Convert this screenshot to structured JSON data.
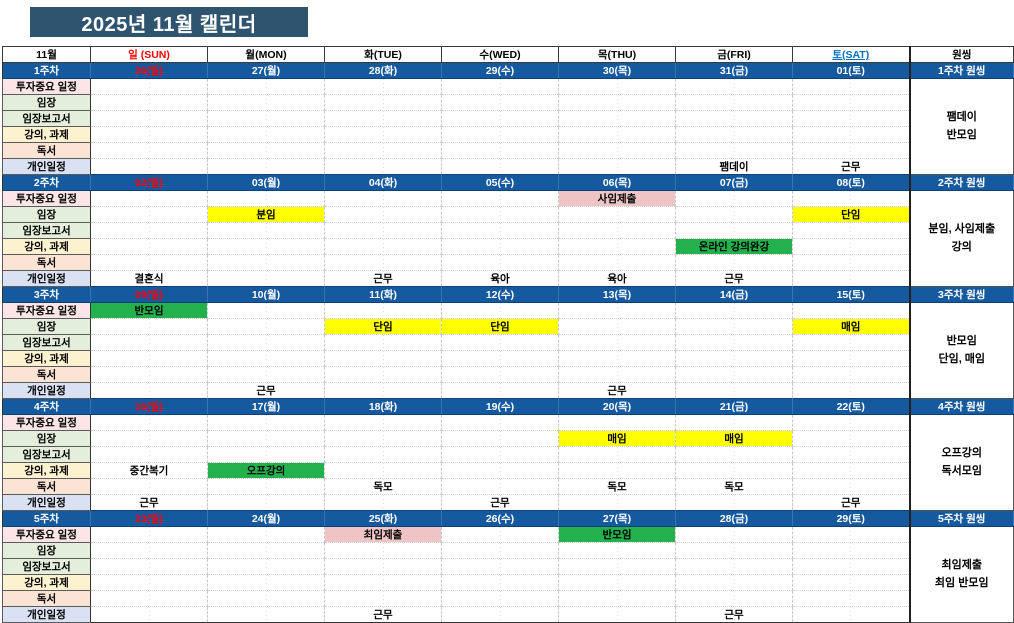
{
  "title": "2025년 11월 캘린더",
  "header": {
    "month": "11월",
    "days": [
      "일 (SUN)",
      "월(MON)",
      "화(TUE)",
      "수(WED)",
      "목(THU)",
      "금(FRI)",
      "토(SAT)"
    ],
    "onething": "원씽"
  },
  "row_labels": [
    "투자중요 일정",
    "임장",
    "임장보고서",
    "강의, 과제",
    "독서",
    "개인일정"
  ],
  "weeks": [
    {
      "label": "1주차",
      "dates": [
        "26(일)",
        "27(월)",
        "28(화)",
        "29(수)",
        "30(목)",
        "31(금)",
        "01(토)"
      ],
      "onething_header": "1주차 원씽",
      "onething": [
        "팸데이",
        "반모임"
      ],
      "events": [
        {
          "row_label": "개인일정",
          "date": "31(금)",
          "text": "팸데이",
          "highlight": null
        },
        {
          "row_label": "개인일정",
          "date": "01(토)",
          "text": "근무",
          "highlight": null
        }
      ]
    },
    {
      "label": "2주차",
      "dates": [
        "02(일)",
        "03(월)",
        "04(화)",
        "05(수)",
        "06(목)",
        "07(금)",
        "08(토)"
      ],
      "onething_header": "2주차 원씽",
      "onething": [
        "분임, 사임제출",
        "강의"
      ],
      "events": [
        {
          "row_label": "투자중요 일정",
          "date": "06(목)",
          "text": "사임제출",
          "highlight": "pink"
        },
        {
          "row_label": "임장",
          "date": "03(월)",
          "text": "분임",
          "highlight": "yellow"
        },
        {
          "row_label": "임장",
          "date": "08(토)",
          "text": "단임",
          "highlight": "yellow"
        },
        {
          "row_label": "강의, 과제",
          "date": "07(금)",
          "text": "온라인 강의완강",
          "highlight": "green"
        },
        {
          "row_label": "개인일정",
          "date": "02(일)",
          "text": "결혼식",
          "highlight": null
        },
        {
          "row_label": "개인일정",
          "date": "04(화)",
          "text": "근무",
          "highlight": null
        },
        {
          "row_label": "개인일정",
          "date": "05(수)",
          "text": "육아",
          "highlight": null
        },
        {
          "row_label": "개인일정",
          "date": "06(목)",
          "text": "육아",
          "highlight": null
        },
        {
          "row_label": "개인일정",
          "date": "07(금)",
          "text": "근무",
          "highlight": null
        }
      ]
    },
    {
      "label": "3주차",
      "dates": [
        "09(일)",
        "10(월)",
        "11(화)",
        "12(수)",
        "13(목)",
        "14(금)",
        "15(토)"
      ],
      "onething_header": "3주차 원씽",
      "onething": [
        "반모임",
        "단임, 매임"
      ],
      "events": [
        {
          "row_label": "투자중요 일정",
          "date": "09(일)",
          "text": "반모임",
          "highlight": "green"
        },
        {
          "row_label": "임장",
          "date": "11(화)",
          "text": "단임",
          "highlight": "yellow"
        },
        {
          "row_label": "임장",
          "date": "12(수)",
          "text": "단임",
          "highlight": "yellow"
        },
        {
          "row_label": "임장",
          "date": "15(토)",
          "text": "매임",
          "highlight": "yellow"
        },
        {
          "row_label": "개인일정",
          "date": "10(월)",
          "text": "근무",
          "highlight": null
        },
        {
          "row_label": "개인일정",
          "date": "13(목)",
          "text": "근무",
          "highlight": null
        }
      ]
    },
    {
      "label": "4주차",
      "dates": [
        "16(일)",
        "17(월)",
        "18(화)",
        "19(수)",
        "20(목)",
        "21(금)",
        "22(토)"
      ],
      "onething_header": "4주차 원씽",
      "onething": [
        "오프강의",
        "독서모임"
      ],
      "events": [
        {
          "row_label": "임장",
          "date": "20(목)",
          "text": "매임",
          "highlight": "yellow"
        },
        {
          "row_label": "임장",
          "date": "21(금)",
          "text": "매임",
          "highlight": "yellow"
        },
        {
          "row_label": "강의, 과제",
          "date": "16(일)",
          "text": "중간복기",
          "highlight": null
        },
        {
          "row_label": "강의, 과제",
          "date": "17(월)",
          "text": "오프강의",
          "highlight": "green"
        },
        {
          "row_label": "독서",
          "date": "18(화)",
          "text": "독모",
          "highlight": null
        },
        {
          "row_label": "독서",
          "date": "20(목)",
          "text": "독모",
          "highlight": null
        },
        {
          "row_label": "독서",
          "date": "21(금)",
          "text": "독모",
          "highlight": null
        },
        {
          "row_label": "개인일정",
          "date": "16(일)",
          "text": "근무",
          "highlight": null
        },
        {
          "row_label": "개인일정",
          "date": "19(수)",
          "text": "근무",
          "highlight": null
        },
        {
          "row_label": "개인일정",
          "date": "22(토)",
          "text": "근무",
          "highlight": null
        }
      ]
    },
    {
      "label": "5주차",
      "dates": [
        "23(일)",
        "24(월)",
        "25(화)",
        "26(수)",
        "27(목)",
        "28(금)",
        "29(토)"
      ],
      "onething_header": "5주차 원씽",
      "onething": [
        "최임제출",
        "최임 반모임"
      ],
      "events": [
        {
          "row_label": "투자중요 일정",
          "date": "25(화)",
          "text": "최임제출",
          "highlight": "pink"
        },
        {
          "row_label": "투자중요 일정",
          "date": "27(목)",
          "text": "반모임",
          "highlight": "green"
        },
        {
          "row_label": "개인일정",
          "date": "25(화)",
          "text": "근무",
          "highlight": null
        },
        {
          "row_label": "개인일정",
          "date": "28(금)",
          "text": "근무",
          "highlight": null
        }
      ]
    }
  ],
  "colors": {
    "title_navy": "#2F5470",
    "band_blue": "#15599F",
    "sunday_red": "#FF0000",
    "saturday_blue": "#0070C0",
    "hl_yellow": "#FFFF00",
    "hl_green": "#22B14C",
    "hl_pink": "#EFC4C7",
    "label_pink": "#FBE5E6",
    "label_green": "#E3EFDA",
    "label_cream": "#FDF2D0",
    "label_peach": "#FBE3D5",
    "label_periwinkle": "#D9E1F2"
  }
}
